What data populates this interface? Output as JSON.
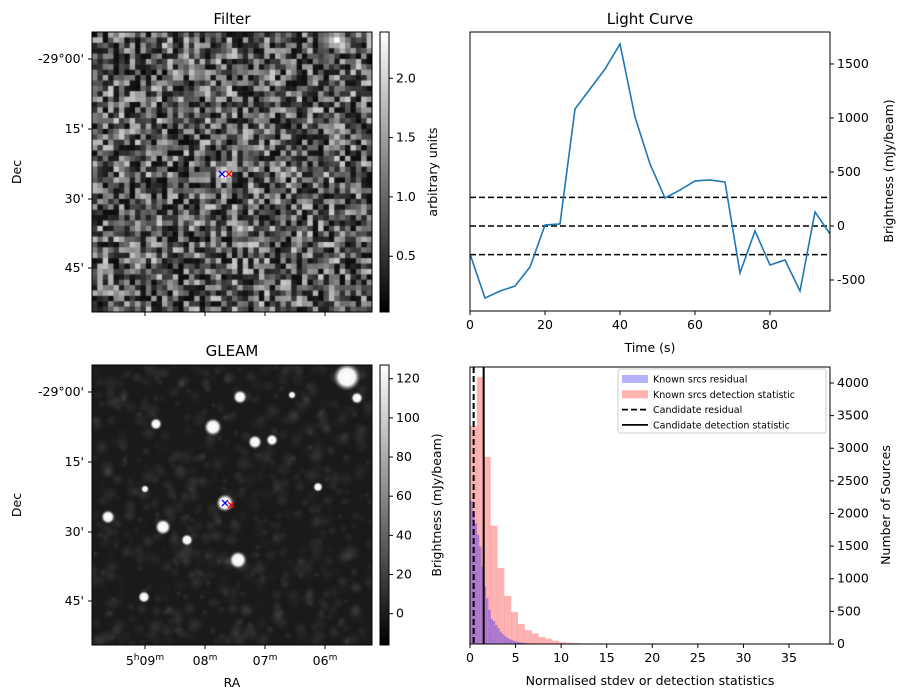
{
  "chart_data": [
    {
      "type": "heatmap",
      "title": "Filter",
      "ylabel": "Dec",
      "yticks": [
        "-29°00'",
        "15'",
        "30'",
        "45'"
      ],
      "colorbar": {
        "label": "arbitrary units",
        "ticks": [
          0.5,
          1.0,
          1.5,
          2.0
        ],
        "tick_labels": [
          "0.5",
          "1.0",
          "1.5",
          "2.0"
        ],
        "range": [
          0.03,
          2.39
        ],
        "cmap": "gray"
      },
      "markers": [
        {
          "symbol": "x",
          "color": "#0000ff"
        },
        {
          "symbol": "x",
          "color": "#ff0000"
        }
      ]
    },
    {
      "type": "line",
      "title": "Light Curve",
      "xlabel": "Time (s)",
      "ylabel": "Brightness (mJy/beam)",
      "xlim": [
        0,
        96
      ],
      "ylim": [
        -787,
        1796
      ],
      "xticks": [
        0,
        20,
        40,
        60,
        80
      ],
      "yticks": [
        -500,
        0,
        500,
        1000,
        1500
      ],
      "color": "#1f77b4",
      "x": [
        0,
        4,
        8,
        12,
        16,
        20,
        24,
        28,
        32,
        36,
        40,
        44,
        48,
        52,
        56,
        60,
        64,
        68,
        72,
        76,
        80,
        84,
        88,
        92,
        96
      ],
      "y": [
        -259,
        -667,
        -602,
        -556,
        -380,
        9,
        19,
        1083,
        1268,
        1453,
        1685,
        1009,
        574,
        259,
        333,
        417,
        426,
        407,
        -435,
        -46,
        -361,
        -315,
        -602,
        130,
        -74
      ],
      "hlines": [
        265,
        0,
        -265
      ]
    },
    {
      "type": "heatmap",
      "title": "GLEAM",
      "xlabel": "RA",
      "ylabel": "Dec",
      "xticks": [
        {
          "h": "5",
          "hs": "h",
          "m": "09",
          "ms": "m"
        },
        {
          "h": "",
          "hs": "",
          "m": "08",
          "ms": "m"
        },
        {
          "h": "",
          "hs": "",
          "m": "07",
          "ms": "m"
        },
        {
          "h": "",
          "hs": "",
          "m": "06",
          "ms": "m"
        }
      ],
      "yticks": [
        "-29°00'",
        "15'",
        "30'",
        "45'"
      ],
      "colorbar": {
        "label": "Brightness (mJy/beam)",
        "ticks": [
          0,
          20,
          40,
          60,
          80,
          100,
          120
        ],
        "tick_labels": [
          "0",
          "20",
          "40",
          "60",
          "80",
          "100",
          "120"
        ],
        "range": [
          -16,
          127
        ],
        "cmap": "gray"
      },
      "markers": [
        {
          "symbol": "x",
          "color": "#0000ff"
        },
        {
          "symbol": "x",
          "color": "#ff0000"
        }
      ]
    },
    {
      "type": "bar",
      "subtype": "histogram",
      "xlabel": "Normalised stdev or detection statistics",
      "ylabel": "Number of Sources",
      "xlim": [
        0,
        39.5
      ],
      "ylim": [
        0,
        4245
      ],
      "xticks": [
        0,
        5,
        10,
        15,
        20,
        25,
        30,
        35
      ],
      "yticks": [
        0,
        500,
        1000,
        1500,
        2000,
        2500,
        3000,
        3500,
        4000
      ],
      "legend_position": "top-right",
      "series": [
        {
          "name": "Known srcs residual",
          "color": "#0000ff",
          "bin_start": 0,
          "bin_width": 0.25,
          "values": [
            2192,
            2018,
            1850,
            1671,
            1492,
            1186,
            879,
            700,
            520,
            383,
            353,
            290,
            240,
            190,
            150,
            120,
            95,
            75,
            60,
            48,
            38,
            30,
            24,
            18,
            14,
            11,
            8,
            6,
            5,
            4,
            3,
            2,
            2,
            1,
            1
          ]
        },
        {
          "name": "Known srcs detection statistic",
          "color": "#ff0000",
          "bin_start": 0,
          "bin_width": 0.75,
          "values": [
            3340,
            4090,
            2870,
            1813,
            1165,
            736,
            490,
            306,
            214,
            163,
            107,
            82,
            51,
            30,
            20,
            14,
            10,
            8,
            6,
            5,
            4,
            3,
            3,
            2,
            2,
            2,
            2,
            1,
            0,
            2,
            0,
            1,
            1,
            0,
            1,
            1,
            0,
            0,
            0,
            0,
            1,
            0,
            0,
            0,
            0,
            0,
            0,
            0,
            0,
            1
          ]
        }
      ],
      "vlines": [
        {
          "name": "Candidate residual",
          "x": 0.4,
          "style": "dashed",
          "color": "#000000"
        },
        {
          "name": "Candidate detection statistic",
          "x": 1.5,
          "style": "solid",
          "color": "#000000"
        }
      ]
    }
  ]
}
